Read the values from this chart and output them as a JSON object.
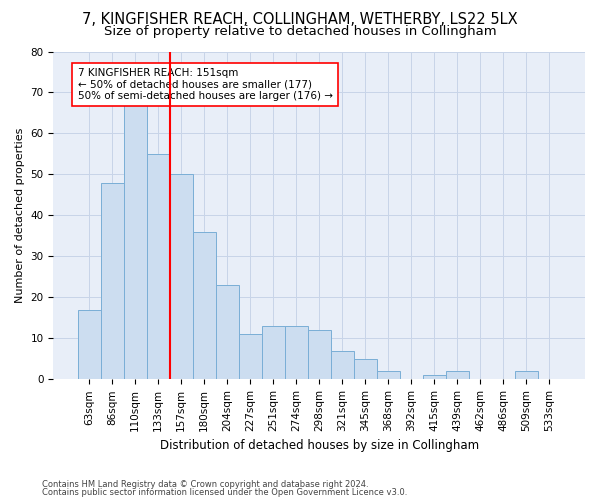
{
  "title1": "7, KINGFISHER REACH, COLLINGHAM, WETHERBY, LS22 5LX",
  "title2": "Size of property relative to detached houses in Collingham",
  "xlabel": "Distribution of detached houses by size in Collingham",
  "ylabel": "Number of detached properties",
  "bar_labels": [
    "63sqm",
    "86sqm",
    "110sqm",
    "133sqm",
    "157sqm",
    "180sqm",
    "204sqm",
    "227sqm",
    "251sqm",
    "274sqm",
    "298sqm",
    "321sqm",
    "345sqm",
    "368sqm",
    "392sqm",
    "415sqm",
    "439sqm",
    "462sqm",
    "486sqm",
    "509sqm",
    "533sqm"
  ],
  "bar_values": [
    17,
    48,
    67,
    55,
    50,
    36,
    23,
    11,
    13,
    13,
    12,
    7,
    5,
    2,
    0,
    1,
    2,
    0,
    0,
    2,
    0
  ],
  "bar_color": "#ccddf0",
  "bar_edge_color": "#7aaed6",
  "vline_x": 3.5,
  "vline_color": "red",
  "annotation_text": "7 KINGFISHER REACH: 151sqm\n← 50% of detached houses are smaller (177)\n50% of semi-detached houses are larger (176) →",
  "annotation_box_color": "white",
  "annotation_box_edge": "red",
  "ylim": [
    0,
    80
  ],
  "yticks": [
    0,
    10,
    20,
    30,
    40,
    50,
    60,
    70,
    80
  ],
  "grid_color": "#c8d4e8",
  "bg_color": "#e8eef8",
  "footer1": "Contains HM Land Registry data © Crown copyright and database right 2024.",
  "footer2": "Contains public sector information licensed under the Open Government Licence v3.0.",
  "title1_fontsize": 10.5,
  "title2_fontsize": 9.5,
  "xlabel_fontsize": 8.5,
  "ylabel_fontsize": 8,
  "tick_fontsize": 7.5,
  "annotation_fontsize": 7.5
}
